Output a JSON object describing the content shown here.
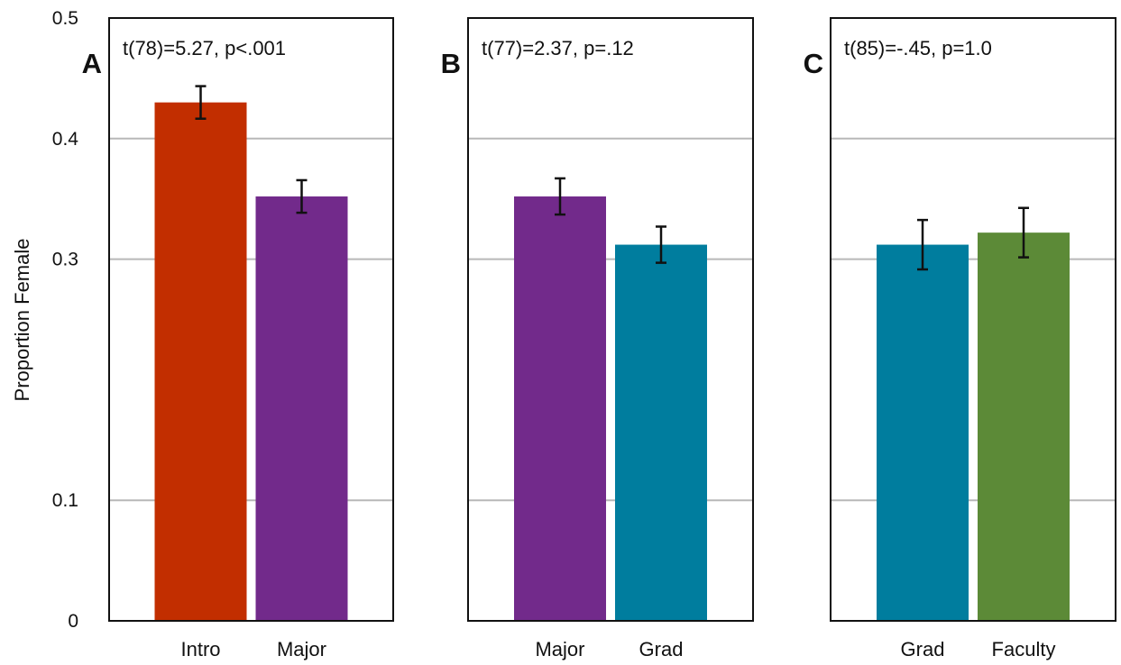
{
  "chart_data": {
    "type": "bar",
    "ylabel": "Proportion Female",
    "ylim": [
      0,
      0.5
    ],
    "yticks": [
      "0",
      "0.1",
      "0.3",
      "0.4",
      "0.5"
    ],
    "ytick_values": [
      0,
      0.1,
      0.3,
      0.4,
      0.5
    ],
    "grid": "horizontal",
    "panels": [
      {
        "letter": "A",
        "stat": "t(78)=5.27, p<.001",
        "categories": [
          "Intro",
          "Major"
        ],
        "values": [
          0.43,
          0.352
        ],
        "errors": [
          0.0135,
          0.0135
        ],
        "colors": [
          "#c22e00",
          "#722a8b"
        ]
      },
      {
        "letter": "B",
        "stat": "t(77)=2.37, p=.12",
        "categories": [
          "Major",
          "Grad"
        ],
        "values": [
          0.352,
          0.312
        ],
        "errors": [
          0.015,
          0.015
        ],
        "colors": [
          "#722a8b",
          "#007d9e"
        ]
      },
      {
        "letter": "C",
        "stat": "t(85)=-.45, p=1.0",
        "categories": [
          "Grad",
          "Faculty"
        ],
        "values": [
          0.312,
          0.322
        ],
        "errors": [
          0.0205,
          0.0205
        ],
        "colors": [
          "#007d9e",
          "#5c8a37"
        ]
      }
    ]
  }
}
